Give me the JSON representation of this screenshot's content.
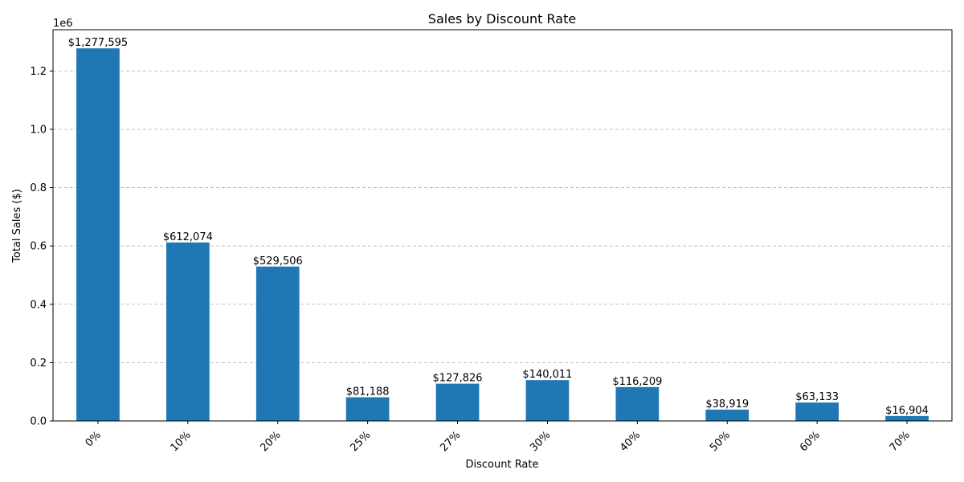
{
  "chart_data": {
    "type": "bar",
    "title": "Sales by Discount Rate",
    "xlabel": "Discount Rate",
    "ylabel": "Total Sales ($)",
    "y_offset_text": "1e6",
    "categories": [
      "0%",
      "10%",
      "20%",
      "25%",
      "27%",
      "30%",
      "40%",
      "50%",
      "60%",
      "70%"
    ],
    "values": [
      1277595,
      612074,
      529506,
      81188,
      127826,
      140011,
      116209,
      38919,
      63133,
      16904
    ],
    "value_labels": [
      "$1,277,595",
      "$612,074",
      "$529,506",
      "$81,188",
      "$127,826",
      "$140,011",
      "$116,209",
      "$38,919",
      "$63,133",
      "$16,904"
    ],
    "ylim": [
      0,
      1341475
    ],
    "y_ticks": [
      0,
      200000,
      400000,
      600000,
      800000,
      1000000,
      1200000
    ],
    "y_tick_labels": [
      "0.0",
      "0.2",
      "0.4",
      "0.6",
      "0.8",
      "1.0",
      "1.2"
    ],
    "x_tick_rotation_deg": 45,
    "grid": {
      "y": true,
      "x": false,
      "style": "dashed",
      "color": "#b0b0b0"
    },
    "legend": null,
    "colors": {
      "bar": "#1f77b4",
      "axis": "#000000",
      "text": "#000000"
    }
  }
}
